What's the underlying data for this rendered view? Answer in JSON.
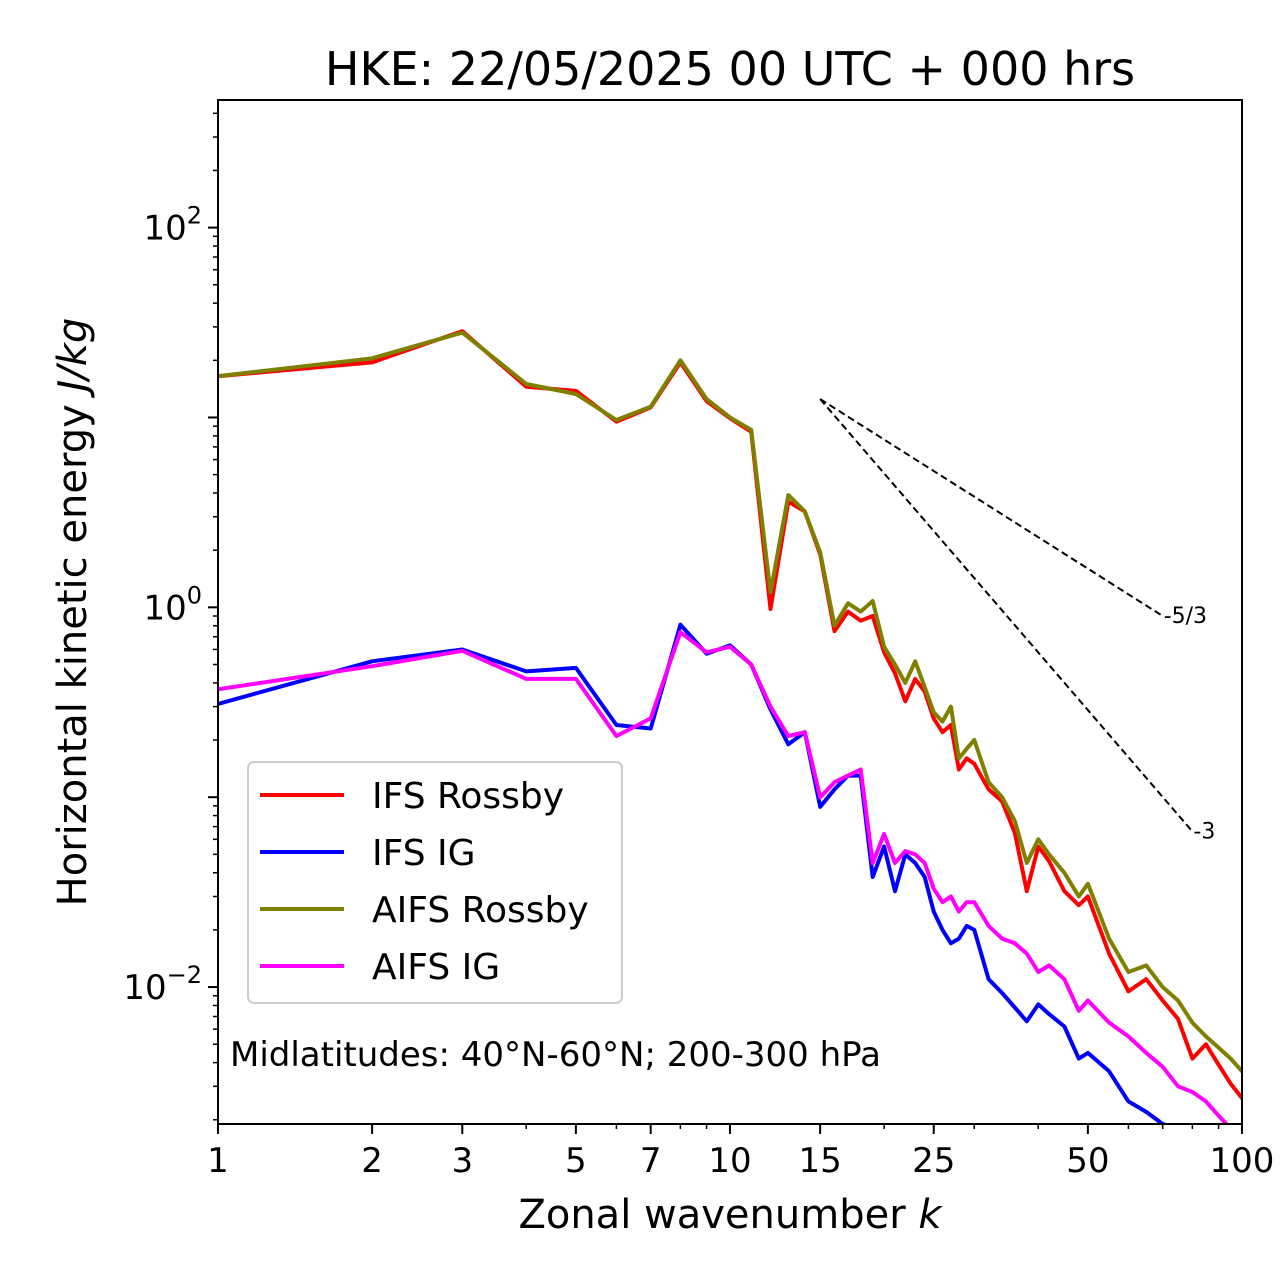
{
  "chart_data": {
    "type": "line",
    "title": "HKE: 22/05/2025 00 UTC + 000 hrs",
    "xlabel": "Zonal wavenumber",
    "xlabel_var": "k",
    "ylabel": "Horizontal kinetic energy",
    "ylabel_unit": "J/kg",
    "xscale": "log",
    "yscale": "log",
    "xlim": [
      1,
      100
    ],
    "ylim": [
      0.0019,
      470
    ],
    "x_ticks": [
      {
        "value": 1,
        "label": "1"
      },
      {
        "value": 2,
        "label": "2"
      },
      {
        "value": 3,
        "label": "3"
      },
      {
        "value": 5,
        "label": "5"
      },
      {
        "value": 7,
        "label": "7"
      },
      {
        "value": 10,
        "label": "10"
      },
      {
        "value": 15,
        "label": "15"
      },
      {
        "value": 25,
        "label": "25"
      },
      {
        "value": 50,
        "label": "50"
      },
      {
        "value": 100,
        "label": "100"
      }
    ],
    "y_ticks": [
      {
        "value": 100,
        "base": "10",
        "exp": "2"
      },
      {
        "value": 1,
        "base": "10",
        "exp": "0"
      },
      {
        "value": 0.01,
        "base": "10",
        "exp": "−2"
      }
    ],
    "legend_position": "lower-left",
    "annotation": "Midlatitudes: 40°N-60°N; 200-300 hPa",
    "reference_lines": [
      {
        "label": "-5/3",
        "x": [
          15,
          70
        ],
        "y": [
          12.5,
          0.9
        ]
      },
      {
        "label": "-3",
        "x": [
          15,
          80
        ],
        "y": [
          12.5,
          0.066
        ]
      }
    ],
    "series": [
      {
        "name": "IFS Rossby",
        "color": "#ff0000",
        "x": [
          1,
          2,
          3,
          4,
          5,
          6,
          7,
          8,
          9,
          10,
          11,
          12,
          13,
          14,
          15,
          16,
          17,
          18,
          19,
          20,
          21,
          22,
          23,
          24,
          25,
          26,
          27,
          28,
          29,
          30,
          32,
          34,
          36,
          38,
          40,
          42,
          45,
          48,
          50,
          55,
          60,
          65,
          70,
          75,
          80,
          85,
          90,
          95,
          100
        ],
        "y": [
          16.5,
          19.5,
          28.5,
          14.5,
          13.8,
          9.5,
          11.3,
          19.5,
          12.2,
          9.9,
          8.4,
          0.98,
          3.6,
          3.2,
          1.9,
          0.75,
          0.95,
          0.85,
          0.9,
          0.58,
          0.45,
          0.32,
          0.42,
          0.36,
          0.26,
          0.22,
          0.24,
          0.14,
          0.16,
          0.15,
          0.11,
          0.095,
          0.065,
          0.032,
          0.055,
          0.046,
          0.032,
          0.027,
          0.03,
          0.015,
          0.0095,
          0.011,
          0.0085,
          0.0068,
          0.0042,
          0.005,
          0.0039,
          0.0031,
          0.0026
        ]
      },
      {
        "name": "IFS IG",
        "color": "#0000ff",
        "x": [
          1,
          2,
          3,
          4,
          5,
          6,
          7,
          8,
          9,
          10,
          11,
          12,
          13,
          14,
          15,
          16,
          17,
          18,
          19,
          20,
          21,
          22,
          23,
          24,
          25,
          26,
          27,
          28,
          29,
          30,
          32,
          34,
          36,
          38,
          40,
          42,
          45,
          48,
          50,
          55,
          60,
          65,
          70,
          75,
          80,
          85,
          90,
          95,
          100
        ],
        "y": [
          0.31,
          0.52,
          0.6,
          0.46,
          0.48,
          0.24,
          0.23,
          0.81,
          0.57,
          0.63,
          0.5,
          0.29,
          0.19,
          0.22,
          0.089,
          0.11,
          0.13,
          0.13,
          0.038,
          0.055,
          0.032,
          0.05,
          0.045,
          0.038,
          0.025,
          0.02,
          0.017,
          0.018,
          0.021,
          0.02,
          0.011,
          0.0093,
          0.0078,
          0.0066,
          0.0081,
          0.0072,
          0.0062,
          0.0042,
          0.0045,
          0.0036,
          0.0025,
          0.0022,
          0.0019,
          0.0018,
          0.0016,
          0.0015,
          0.0013,
          0.0012,
          0.0011
        ]
      },
      {
        "name": "AIFS Rossby",
        "color": "#808000",
        "x": [
          1,
          2,
          3,
          4,
          5,
          6,
          7,
          8,
          9,
          10,
          11,
          12,
          13,
          14,
          15,
          16,
          17,
          18,
          19,
          20,
          21,
          22,
          23,
          24,
          25,
          26,
          27,
          28,
          29,
          30,
          32,
          34,
          36,
          38,
          40,
          42,
          45,
          48,
          50,
          55,
          60,
          65,
          70,
          75,
          80,
          85,
          90,
          95,
          100
        ],
        "y": [
          16.5,
          20.5,
          28,
          15,
          13.3,
          9.7,
          11.4,
          20,
          12.5,
          10,
          8.6,
          1.2,
          3.9,
          3.2,
          1.95,
          0.8,
          1.05,
          0.95,
          1.08,
          0.62,
          0.5,
          0.4,
          0.52,
          0.38,
          0.28,
          0.25,
          0.3,
          0.16,
          0.18,
          0.2,
          0.12,
          0.1,
          0.075,
          0.045,
          0.06,
          0.05,
          0.04,
          0.03,
          0.035,
          0.018,
          0.012,
          0.013,
          0.01,
          0.0085,
          0.0065,
          0.0055,
          0.0048,
          0.0042,
          0.0036
        ]
      },
      {
        "name": "AIFS IG",
        "color": "#ff00ff",
        "x": [
          1,
          2,
          3,
          4,
          5,
          6,
          7,
          8,
          9,
          10,
          11,
          12,
          13,
          14,
          15,
          16,
          17,
          18,
          19,
          20,
          21,
          22,
          23,
          24,
          25,
          26,
          27,
          28,
          29,
          30,
          32,
          34,
          36,
          38,
          40,
          42,
          45,
          48,
          50,
          55,
          60,
          65,
          70,
          75,
          80,
          85,
          90,
          95,
          100
        ],
        "y": [
          0.37,
          0.49,
          0.59,
          0.42,
          0.42,
          0.21,
          0.26,
          0.74,
          0.58,
          0.62,
          0.5,
          0.3,
          0.21,
          0.22,
          0.1,
          0.12,
          0.13,
          0.14,
          0.045,
          0.064,
          0.045,
          0.052,
          0.05,
          0.045,
          0.033,
          0.028,
          0.03,
          0.025,
          0.028,
          0.028,
          0.021,
          0.018,
          0.017,
          0.015,
          0.012,
          0.013,
          0.011,
          0.0075,
          0.0085,
          0.0065,
          0.0055,
          0.0045,
          0.0038,
          0.003,
          0.0028,
          0.0025,
          0.0021,
          0.0018,
          0.0015
        ]
      }
    ]
  }
}
